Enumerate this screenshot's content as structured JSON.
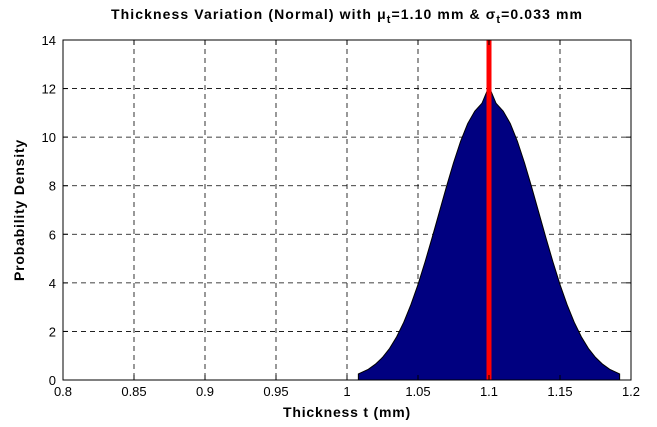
{
  "chart_data": {
    "type": "area",
    "title_parts": [
      "Thickness Variation (Normal) with ",
      "μ",
      "t",
      "=1.10 mm & ",
      "σ",
      "t",
      "=0.033 mm"
    ],
    "xlabel": "Thickness t (mm)",
    "ylabel": "Probability Density",
    "xlim": [
      0.8,
      1.2
    ],
    "ylim": [
      0,
      14
    ],
    "xticks": [
      "0.8",
      "0.85",
      "0.9",
      "0.95",
      "1",
      "1.05",
      "1.1",
      "1.15",
      "1.2"
    ],
    "yticks": [
      "0",
      "2",
      "4",
      "6",
      "8",
      "10",
      "12",
      "14"
    ],
    "grid": true,
    "series": [
      {
        "x": [
          1.008,
          1.015,
          1.02,
          1.025,
          1.03,
          1.035,
          1.04,
          1.045,
          1.05,
          1.055,
          1.06,
          1.065,
          1.07,
          1.075,
          1.08,
          1.085,
          1.09,
          1.095,
          1.1,
          1.105,
          1.11,
          1.115,
          1.12,
          1.125,
          1.13,
          1.135,
          1.14,
          1.145,
          1.15,
          1.155,
          1.16,
          1.165,
          1.17,
          1.175,
          1.18,
          1.185,
          1.192
        ],
        "y": [
          0.25,
          0.44,
          0.65,
          0.93,
          1.3,
          1.78,
          2.38,
          3.1,
          3.93,
          4.87,
          5.87,
          6.91,
          7.95,
          8.94,
          9.83,
          10.56,
          11.07,
          11.39,
          12.09,
          11.39,
          11.07,
          10.56,
          9.83,
          8.94,
          7.95,
          6.91,
          5.87,
          4.87,
          3.93,
          3.1,
          2.38,
          1.78,
          1.3,
          0.93,
          0.65,
          0.44,
          0.25
        ],
        "color": "#000080"
      }
    ],
    "mean_line": {
      "x": 1.1,
      "color": "#ff0000"
    }
  }
}
